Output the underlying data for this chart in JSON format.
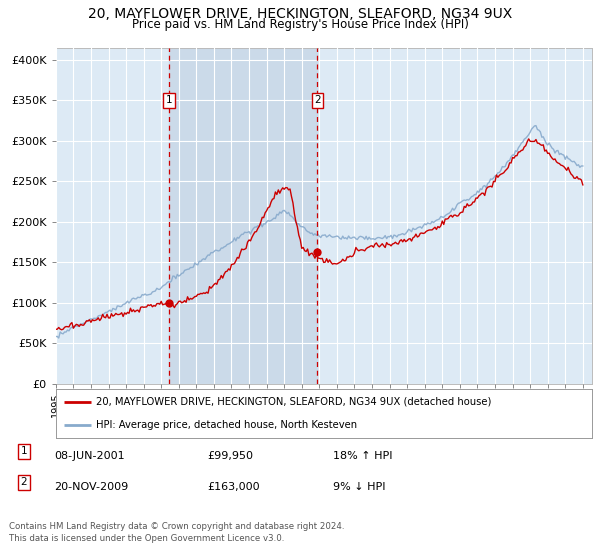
{
  "title": "20, MAYFLOWER DRIVE, HECKINGTON, SLEAFORD, NG34 9UX",
  "subtitle": "Price paid vs. HM Land Registry's House Price Index (HPI)",
  "ylabel_ticks": [
    "£0",
    "£50K",
    "£100K",
    "£150K",
    "£200K",
    "£250K",
    "£300K",
    "£350K",
    "£400K"
  ],
  "ytick_values": [
    0,
    50000,
    100000,
    150000,
    200000,
    250000,
    300000,
    350000,
    400000
  ],
  "ylim": [
    0,
    415000
  ],
  "xlim_start": 1995.0,
  "xlim_end": 2025.5,
  "marker1_x": 2001.44,
  "marker1_y": 99950,
  "marker2_x": 2009.89,
  "marker2_y": 163000,
  "red_color": "#cc0000",
  "blue_color": "#88aacc",
  "shade_color": "#c8d8e8",
  "bg_color": "#ddeaf5",
  "grid_color": "#ffffff",
  "legend_line1": "20, MAYFLOWER DRIVE, HECKINGTON, SLEAFORD, NG34 9UX (detached house)",
  "legend_line2": "HPI: Average price, detached house, North Kesteven",
  "marker1_date": "08-JUN-2001",
  "marker1_price": "£99,950",
  "marker1_hpi": "18% ↑ HPI",
  "marker2_date": "20-NOV-2009",
  "marker2_price": "£163,000",
  "marker2_hpi": "9% ↓ HPI",
  "footer": "Contains HM Land Registry data © Crown copyright and database right 2024.\nThis data is licensed under the Open Government Licence v3.0.",
  "xtick_years": [
    1995,
    1996,
    1997,
    1998,
    1999,
    2000,
    2001,
    2002,
    2003,
    2004,
    2005,
    2006,
    2007,
    2008,
    2009,
    2010,
    2011,
    2012,
    2013,
    2014,
    2015,
    2016,
    2017,
    2018,
    2019,
    2020,
    2021,
    2022,
    2023,
    2024,
    2025
  ]
}
